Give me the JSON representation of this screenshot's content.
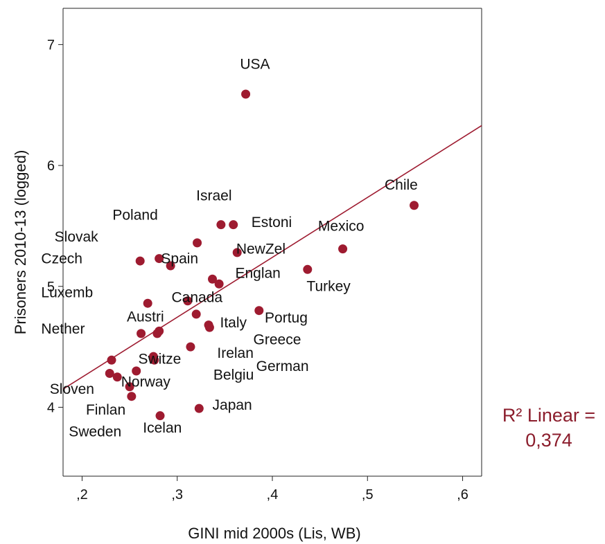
{
  "chart_data": {
    "type": "scatter",
    "xlabel": "GINI mid 2000s (Lis, WB)",
    "ylabel": "Prisoners 2010-13 (logged)",
    "xlim": [
      0.18,
      0.62
    ],
    "ylim": [
      3.43,
      7.3
    ],
    "x_ticks": [
      0.2,
      0.3,
      0.4,
      0.5,
      0.6
    ],
    "x_tick_labels": [
      ",2",
      ",3",
      ",4",
      ",5",
      ",6"
    ],
    "y_ticks": [
      4,
      5,
      6,
      7
    ],
    "y_tick_labels": [
      "4",
      "5",
      "6",
      "7"
    ],
    "grid": false,
    "point_color": "#9e1b30",
    "fit_color": "#9e1b30",
    "fit_line": {
      "type": "linear",
      "x": [
        0.18,
        0.62
      ],
      "y": [
        4.15,
        6.33
      ]
    },
    "r2_label": [
      "R² Linear =",
      "0,374"
    ],
    "points": [
      {
        "x": 0.372,
        "y": 6.59
      },
      {
        "x": 0.549,
        "y": 5.67
      },
      {
        "x": 0.346,
        "y": 5.51
      },
      {
        "x": 0.359,
        "y": 5.51
      },
      {
        "x": 0.474,
        "y": 5.31
      },
      {
        "x": 0.321,
        "y": 5.36
      },
      {
        "x": 0.363,
        "y": 5.28
      },
      {
        "x": 0.281,
        "y": 5.23
      },
      {
        "x": 0.261,
        "y": 5.21
      },
      {
        "x": 0.293,
        "y": 5.17
      },
      {
        "x": 0.437,
        "y": 5.14
      },
      {
        "x": 0.337,
        "y": 5.06
      },
      {
        "x": 0.344,
        "y": 5.02
      },
      {
        "x": 0.269,
        "y": 4.86
      },
      {
        "x": 0.311,
        "y": 4.88
      },
      {
        "x": 0.386,
        "y": 4.8
      },
      {
        "x": 0.32,
        "y": 4.77
      },
      {
        "x": 0.333,
        "y": 4.68
      },
      {
        "x": 0.334,
        "y": 4.66
      },
      {
        "x": 0.262,
        "y": 4.61
      },
      {
        "x": 0.279,
        "y": 4.61
      },
      {
        "x": 0.281,
        "y": 4.63
      },
      {
        "x": 0.314,
        "y": 4.5
      },
      {
        "x": 0.275,
        "y": 4.42
      },
      {
        "x": 0.276,
        "y": 4.39
      },
      {
        "x": 0.231,
        "y": 4.39
      },
      {
        "x": 0.257,
        "y": 4.3
      },
      {
        "x": 0.229,
        "y": 4.28
      },
      {
        "x": 0.237,
        "y": 4.25
      },
      {
        "x": 0.25,
        "y": 4.17
      },
      {
        "x": 0.252,
        "y": 4.09
      },
      {
        "x": 0.323,
        "y": 3.99
      },
      {
        "x": 0.282,
        "y": 3.93
      }
    ],
    "labels": [
      {
        "text": "USA",
        "x": 0.366,
        "y": 6.8
      },
      {
        "text": "Chile",
        "x": 0.518,
        "y": 5.8
      },
      {
        "text": "Israel",
        "x": 0.32,
        "y": 5.71
      },
      {
        "text": "Poland",
        "x": 0.232,
        "y": 5.55
      },
      {
        "text": "Estoni",
        "x": 0.378,
        "y": 5.49
      },
      {
        "text": "Mexico",
        "x": 0.448,
        "y": 5.46
      },
      {
        "text": "Slovak",
        "x": 0.171,
        "y": 5.37
      },
      {
        "text": "NewZel",
        "x": 0.362,
        "y": 5.27
      },
      {
        "text": "Czech",
        "x": 0.157,
        "y": 5.19
      },
      {
        "text": "Spain",
        "x": 0.283,
        "y": 5.19
      },
      {
        "text": "Englan",
        "x": 0.361,
        "y": 5.07
      },
      {
        "text": "Turkey",
        "x": 0.436,
        "y": 4.96
      },
      {
        "text": "Luxemb",
        "x": 0.157,
        "y": 4.91
      },
      {
        "text": "Canada",
        "x": 0.294,
        "y": 4.87
      },
      {
        "text": "Austri",
        "x": 0.247,
        "y": 4.71
      },
      {
        "text": "Portug",
        "x": 0.392,
        "y": 4.7
      },
      {
        "text": "Italy",
        "x": 0.345,
        "y": 4.66
      },
      {
        "text": "Nether",
        "x": 0.157,
        "y": 4.61
      },
      {
        "text": "Greece",
        "x": 0.38,
        "y": 4.52
      },
      {
        "text": "Irelan",
        "x": 0.342,
        "y": 4.41
      },
      {
        "text": "Switze",
        "x": 0.259,
        "y": 4.36
      },
      {
        "text": "German",
        "x": 0.383,
        "y": 4.3
      },
      {
        "text": "Belgiu",
        "x": 0.338,
        "y": 4.23
      },
      {
        "text": "Norway",
        "x": 0.241,
        "y": 4.17
      },
      {
        "text": "Sloven",
        "x": 0.166,
        "y": 4.11
      },
      {
        "text": "Japan",
        "x": 0.337,
        "y": 3.98
      },
      {
        "text": "Finlan",
        "x": 0.204,
        "y": 3.94
      },
      {
        "text": "Icelan",
        "x": 0.264,
        "y": 3.79
      },
      {
        "text": "Sweden",
        "x": 0.186,
        "y": 3.76
      }
    ]
  }
}
